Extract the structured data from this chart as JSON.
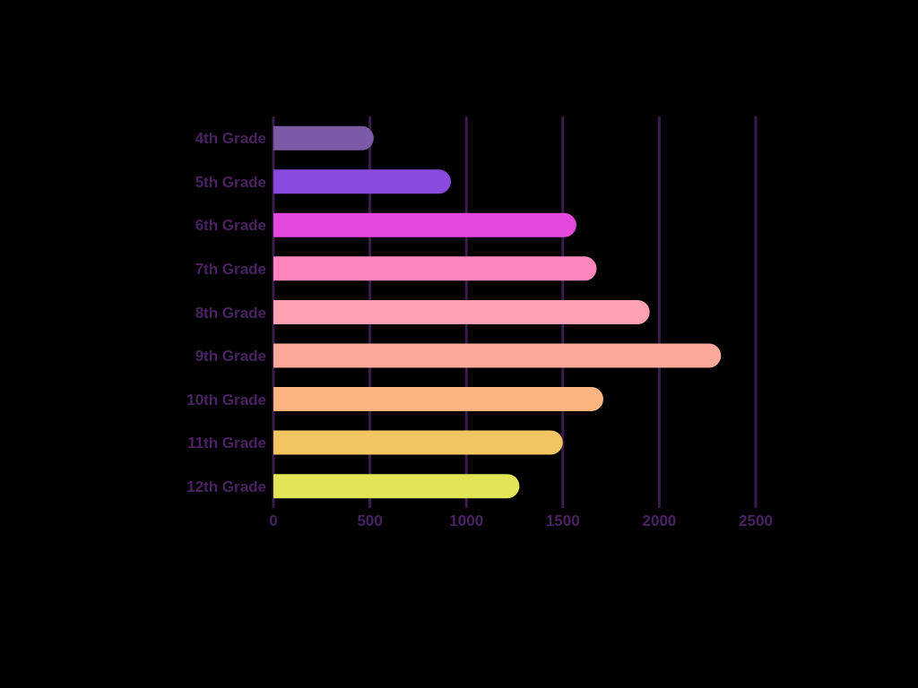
{
  "chart_data": {
    "type": "bar",
    "orientation": "horizontal",
    "categories": [
      "4th Grade",
      "5th Grade",
      "6th Grade",
      "7th Grade",
      "8th Grade",
      "9th Grade",
      "10th Grade",
      "11th Grade",
      "12th Grade"
    ],
    "values": [
      520,
      920,
      1570,
      1675,
      1950,
      2320,
      1710,
      1500,
      1275
    ],
    "colors": [
      "#7b5aa6",
      "#8b4ade",
      "#e548dc",
      "#ff86bd",
      "#ffa0b0",
      "#f9a89a",
      "#feb47f",
      "#f0c562",
      "#e2e656"
    ],
    "xlim": [
      0,
      2500
    ],
    "xticks": [
      0,
      500,
      1000,
      1500,
      2000,
      2500
    ],
    "grid": "x"
  }
}
